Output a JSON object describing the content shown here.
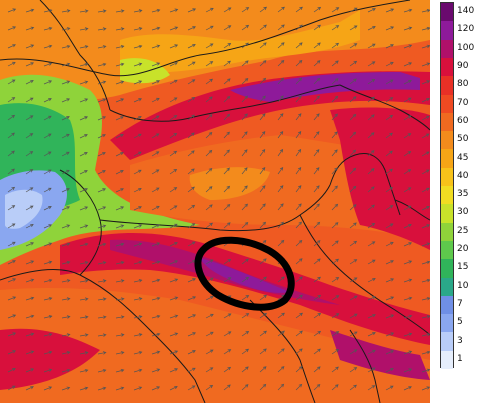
{
  "legend": {
    "levels": [
      {
        "label": "140",
        "color": "#6a0a6e"
      },
      {
        "label": "120",
        "color": "#8e1a9a"
      },
      {
        "label": "100",
        "color": "#b0106a"
      },
      {
        "label": "90",
        "color": "#d8103c"
      },
      {
        "label": "80",
        "color": "#e83026"
      },
      {
        "label": "70",
        "color": "#ef4a22"
      },
      {
        "label": "60",
        "color": "#f06a20"
      },
      {
        "label": "50",
        "color": "#f38b1c"
      },
      {
        "label": "45",
        "color": "#f6a516"
      },
      {
        "label": "40",
        "color": "#f7c21a"
      },
      {
        "label": "35",
        "color": "#f1dd22"
      },
      {
        "label": "30",
        "color": "#c8e22a"
      },
      {
        "label": "25",
        "color": "#8fd33a"
      },
      {
        "label": "20",
        "color": "#5ec94c"
      },
      {
        "label": "15",
        "color": "#30b45a"
      },
      {
        "label": "10",
        "color": "#2aa889"
      },
      {
        "label": "7",
        "color": "#6f8fe6"
      },
      {
        "label": "5",
        "color": "#8aa7f0"
      },
      {
        "label": "3",
        "color": "#b9cdf8"
      },
      {
        "label": "1",
        "color": "#e6eefc"
      }
    ]
  },
  "map": {
    "annotation": "hand-drawn black ellipse highlighting a band of strongest winds",
    "colors": {
      "background": "#ef5a22",
      "strong_band": "#b0106a",
      "peak_band": "#8e1a9a",
      "calm_area": "#8aa7f0",
      "weak_area": "#5ec94c",
      "moderate": "#f38b1c",
      "coastline": "#1a1a1a"
    }
  }
}
